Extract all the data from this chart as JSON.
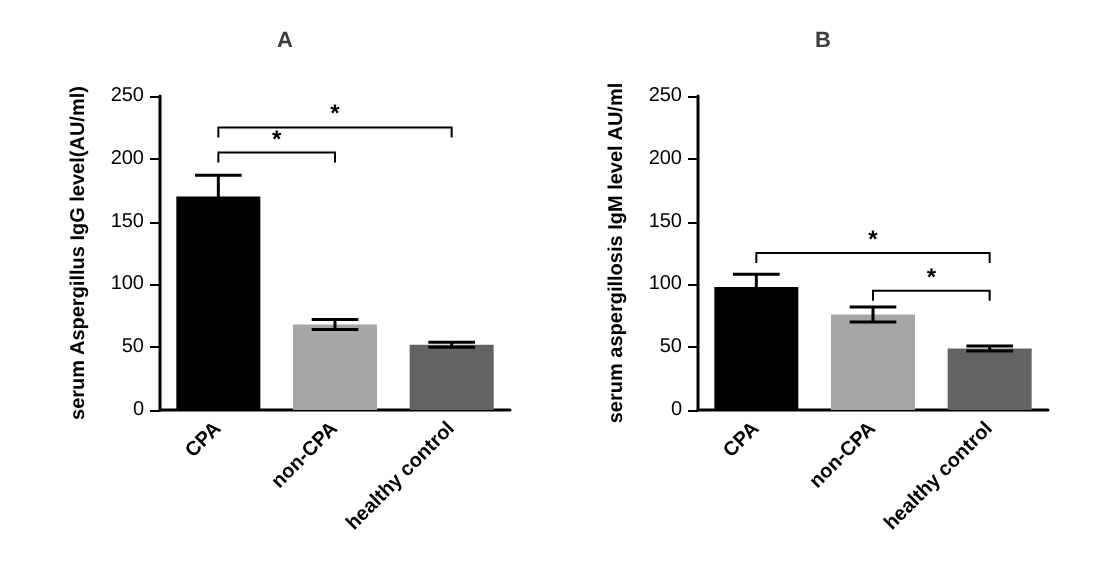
{
  "chart_data": [
    {
      "type": "bar",
      "title": "A",
      "ylabel": "serum Aspergillus IgG level(AU/ml)",
      "categories": [
        "CPA",
        "non-CPA",
        "healthy control"
      ],
      "values": [
        170,
        68,
        52
      ],
      "colors": [
        "#000000",
        "#a6a6a6",
        "#636363"
      ],
      "errors": [
        17,
        4,
        2
      ],
      "ylim": [
        0,
        250
      ],
      "yticks": [
        0,
        50,
        100,
        150,
        200,
        250
      ],
      "annotations": [
        "*",
        "*"
      ]
    },
    {
      "type": "bar",
      "title": "B",
      "ylabel": "serum aspergillosis IgM level AU/ml",
      "categories": [
        "CPA",
        "non-CPA",
        "healthy control"
      ],
      "values": [
        98,
        76,
        49
      ],
      "colors": [
        "#000000",
        "#a6a6a6",
        "#636363"
      ],
      "errors": [
        10,
        6,
        2
      ],
      "ylim": [
        0,
        250
      ],
      "yticks": [
        0,
        50,
        100,
        150,
        200,
        250
      ],
      "annotations": [
        "*",
        "*"
      ]
    }
  ]
}
